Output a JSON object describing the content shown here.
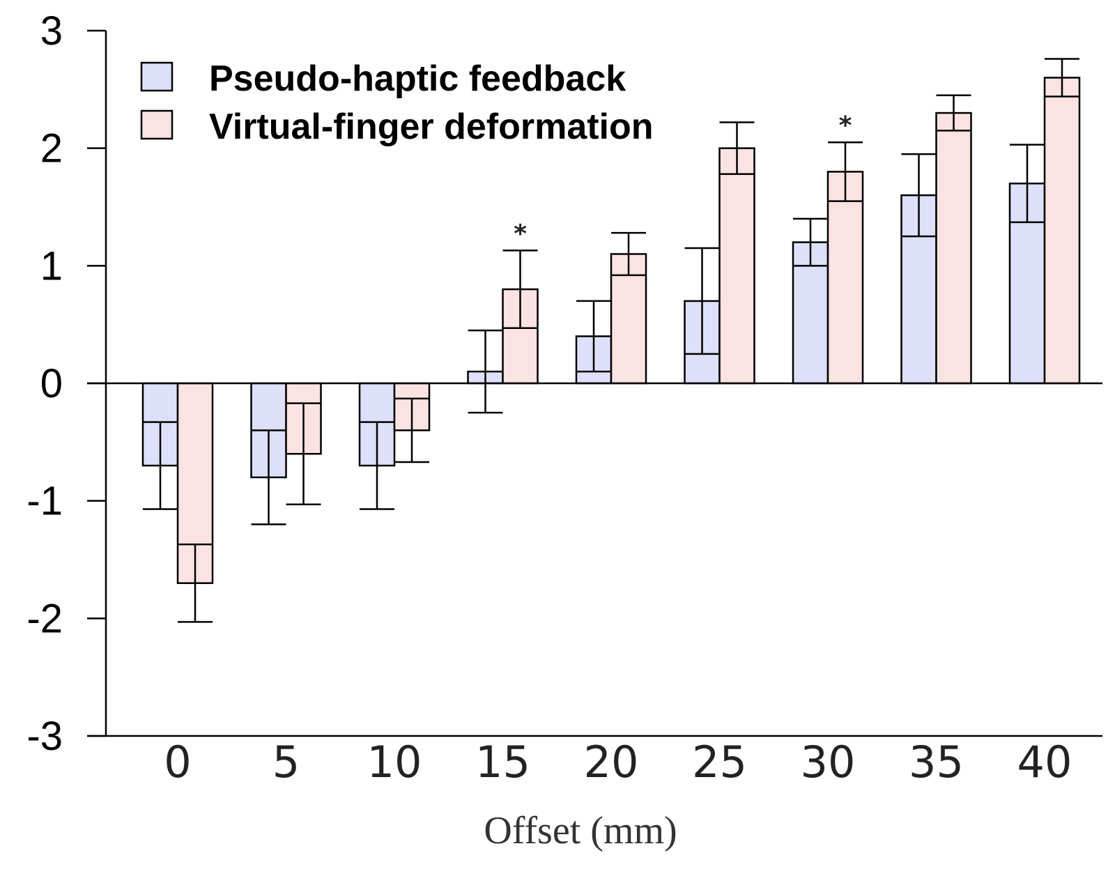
{
  "chart_data": {
    "type": "bar",
    "title": "",
    "xlabel": "Offset (mm)",
    "ylabel": "",
    "ylim": [
      -3,
      3
    ],
    "yticks": [
      "3",
      "2",
      "1",
      "0",
      "-1",
      "-2",
      "-3"
    ],
    "categories": [
      "0",
      "5",
      "10",
      "15",
      "20",
      "25",
      "30",
      "35",
      "40"
    ],
    "legend_position": "top-left",
    "series": [
      {
        "name": "Pseudo-haptic feedback",
        "color": "#dde0f8",
        "values": [
          -0.7,
          -0.8,
          -0.7,
          0.1,
          0.4,
          0.7,
          1.2,
          1.6,
          1.7
        ],
        "errors": [
          0.37,
          0.4,
          0.37,
          0.35,
          0.3,
          0.45,
          0.2,
          0.35,
          0.33
        ]
      },
      {
        "name": "Virtual-finger deformation",
        "color": "#fbe3e3",
        "values": [
          -1.7,
          -0.6,
          -0.4,
          0.8,
          1.1,
          2.0,
          1.8,
          2.3,
          2.6
        ],
        "errors": [
          0.33,
          0.43,
          0.27,
          0.33,
          0.18,
          0.22,
          0.25,
          0.15,
          0.16
        ]
      }
    ],
    "significance": [
      {
        "category": "15",
        "label": "*"
      },
      {
        "category": "30",
        "label": "*"
      }
    ]
  }
}
